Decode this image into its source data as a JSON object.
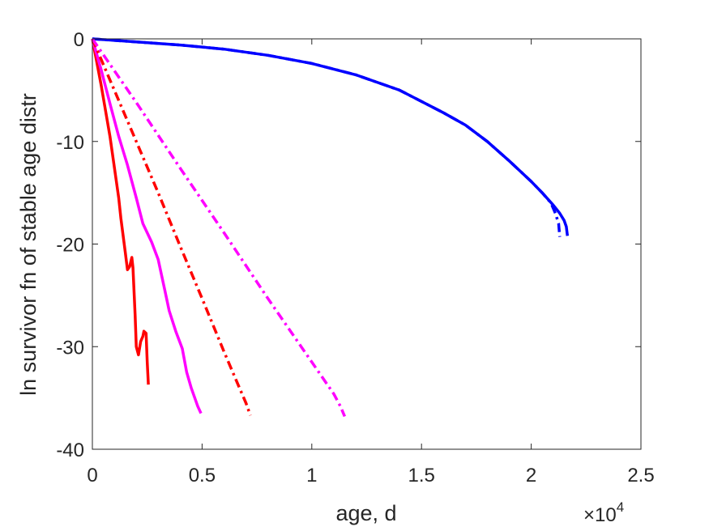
{
  "chart_data": {
    "type": "line",
    "title": "",
    "xlabel": "age, d",
    "ylabel": "ln survivor fn of stable age distr",
    "x_multiplier_label": "×10",
    "x_multiplier_exponent": "4",
    "xlim": [
      0,
      25000
    ],
    "ylim": [
      -40,
      0
    ],
    "xticks": [
      0,
      5000,
      10000,
      15000,
      20000,
      25000
    ],
    "xtick_labels": [
      "0",
      "0.5",
      "1",
      "1.5",
      "2",
      "2.5"
    ],
    "yticks": [
      0,
      -10,
      -20,
      -30,
      -40
    ],
    "ytick_labels": [
      "0",
      "-10",
      "-20",
      "-30",
      "-40"
    ],
    "grid": false,
    "legend": "none",
    "series": [
      {
        "color": "#0000ff",
        "style": "solid",
        "x": [
          0,
          2000,
          4000,
          6000,
          8000,
          10000,
          12000,
          14000,
          16000,
          17000,
          18000,
          19000,
          20000,
          20500,
          21000,
          21300,
          21500,
          21600,
          21650
        ],
        "y": [
          0,
          -0.3,
          -0.6,
          -1.0,
          -1.6,
          -2.4,
          -3.5,
          -5.0,
          -7.2,
          -8.4,
          -10.0,
          -11.9,
          -13.9,
          -15.0,
          -16.2,
          -17.0,
          -17.7,
          -18.3,
          -19.2
        ]
      },
      {
        "color": "#0000ff",
        "style": "dashdot",
        "x": [
          0,
          2000,
          4000,
          6000,
          8000,
          10000,
          12000,
          14000,
          16000,
          17000,
          18000,
          19000,
          20000,
          20500,
          20900,
          21100,
          21250,
          21300
        ],
        "y": [
          0,
          -0.3,
          -0.6,
          -1.0,
          -1.6,
          -2.4,
          -3.5,
          -5.0,
          -7.2,
          -8.4,
          -10.0,
          -11.9,
          -13.9,
          -15.0,
          -16.0,
          -17.0,
          -18.0,
          -19.3
        ]
      },
      {
        "color": "#ff0000",
        "style": "solid",
        "x": [
          0,
          400,
          800,
          1200,
          1300,
          1500,
          1600,
          1700,
          1800,
          1850,
          1950,
          2000,
          2100,
          2200,
          2300,
          2350,
          2450,
          2500,
          2550
        ],
        "y": [
          0,
          -4.5,
          -9.5,
          -15.5,
          -17.5,
          -20.8,
          -22.5,
          -22.2,
          -21.3,
          -22.3,
          -27.0,
          -30.0,
          -30.8,
          -29.5,
          -29.0,
          -28.5,
          -28.7,
          -31.5,
          -33.7
        ]
      },
      {
        "color": "#ff00ff",
        "style": "solid",
        "x": [
          0,
          400,
          800,
          1200,
          1600,
          2000,
          2300,
          2700,
          3000,
          3300,
          3500,
          3800,
          4100,
          4300,
          4500,
          4800,
          4950
        ],
        "y": [
          0,
          -3.0,
          -6.3,
          -9.5,
          -12.3,
          -15.5,
          -18.0,
          -19.8,
          -21.5,
          -24.5,
          -26.5,
          -28.5,
          -30.2,
          -32.5,
          -34.0,
          -35.8,
          -36.5
        ]
      },
      {
        "color": "#ff0000",
        "style": "dashdot",
        "x": [
          0,
          1000,
          2000,
          3000,
          4000,
          5000,
          6000,
          6500,
          7000,
          7200
        ],
        "y": [
          0,
          -5.0,
          -10.0,
          -15.0,
          -20.2,
          -25.3,
          -30.5,
          -33.0,
          -35.5,
          -36.7
        ]
      },
      {
        "color": "#ff00ff",
        "style": "dashdot",
        "x": [
          0,
          2000,
          4000,
          6000,
          8000,
          10000,
          11000,
          11300,
          11500
        ],
        "y": [
          0,
          -6.2,
          -12.6,
          -18.9,
          -25.3,
          -31.5,
          -34.6,
          -35.8,
          -36.8
        ]
      }
    ]
  }
}
